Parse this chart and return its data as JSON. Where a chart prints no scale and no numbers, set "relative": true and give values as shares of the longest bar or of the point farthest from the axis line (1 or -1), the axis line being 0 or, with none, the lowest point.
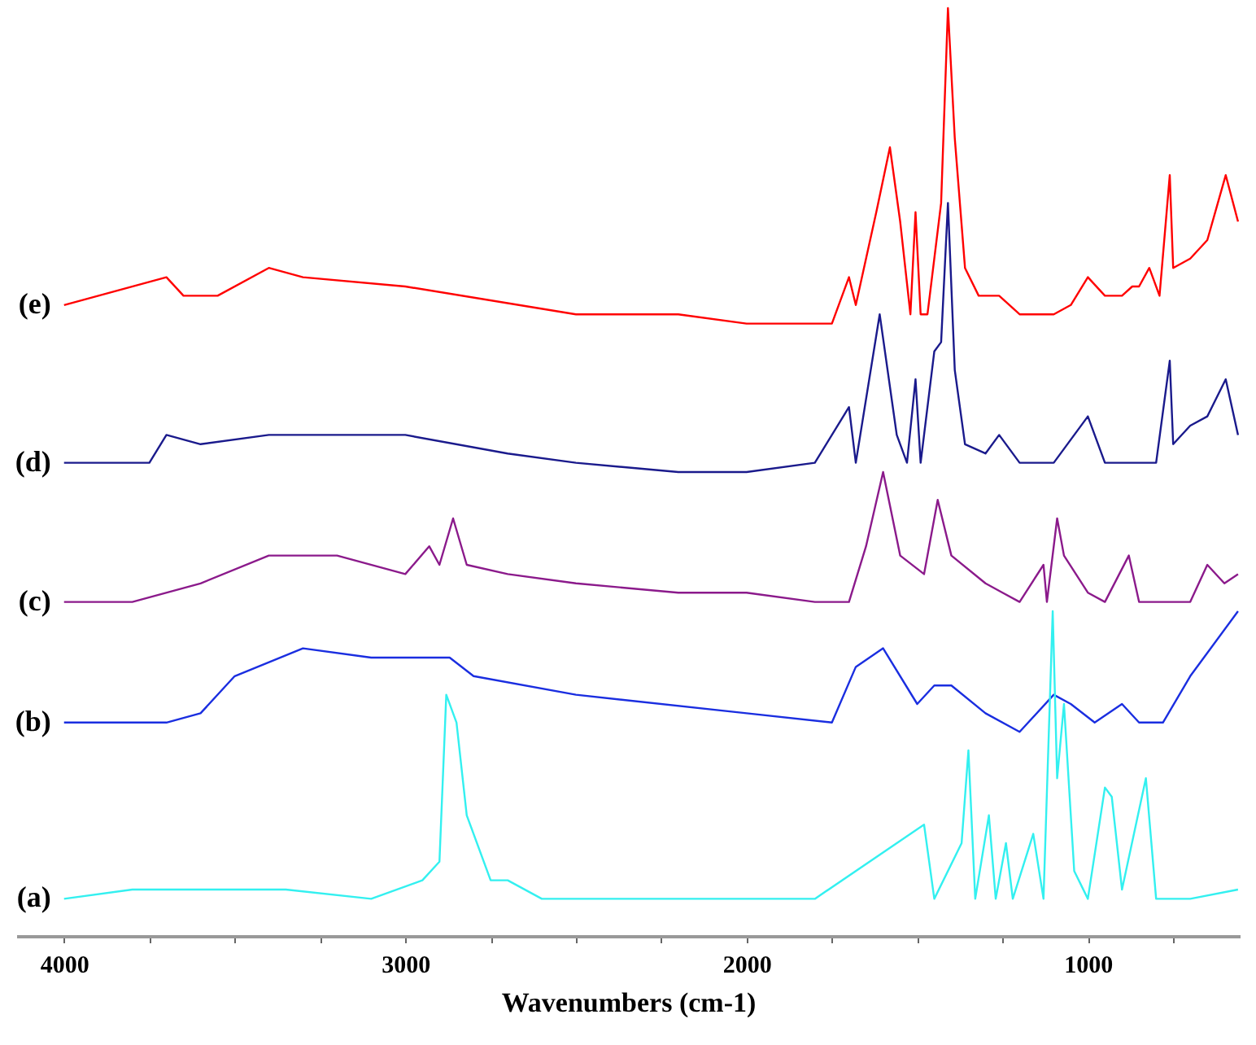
{
  "chart_data": {
    "type": "line",
    "relative": true,
    "xlabel": "Wavenumbers (cm-1)",
    "xlim": [
      4140,
      555
    ],
    "xticks": [
      4000,
      {
        "value": 3750,
        "label": null
      },
      {
        "value": 3500,
        "label": null
      },
      {
        "value": 3250,
        "label": null
      },
      3000,
      {
        "value": 2750,
        "label": null
      },
      {
        "value": 2500,
        "label": null
      },
      {
        "value": 2250,
        "label": null
      },
      2000,
      {
        "value": 1750,
        "label": null
      },
      {
        "value": 1500,
        "label": null
      },
      {
        "value": 1250,
        "label": null
      },
      1000,
      {
        "value": 750,
        "label": null
      }
    ],
    "grid": false,
    "line_style": "solid",
    "marker": "none",
    "series": [
      {
        "name": "(e)",
        "color": "#ff0000",
        "x": [
          4000,
          3700,
          3650,
          3550,
          3400,
          3300,
          3000,
          2500,
          2200,
          2000,
          1750,
          1700,
          1680,
          1620,
          1580,
          1550,
          1520,
          1505,
          1490,
          1470,
          1430,
          1410,
          1390,
          1360,
          1320,
          1260,
          1200,
          1150,
          1100,
          1050,
          1000,
          950,
          900,
          870,
          850,
          820,
          790,
          760,
          750,
          700,
          650,
          596,
          560
        ],
        "values": [
          0.68,
          0.71,
          0.69,
          0.69,
          0.72,
          0.71,
          0.7,
          0.67,
          0.67,
          0.66,
          0.66,
          0.71,
          0.68,
          0.78,
          0.85,
          0.77,
          0.67,
          0.78,
          0.67,
          0.67,
          0.79,
          1.0,
          0.86,
          0.72,
          0.69,
          0.69,
          0.67,
          0.67,
          0.67,
          0.68,
          0.71,
          0.69,
          0.69,
          0.7,
          0.7,
          0.72,
          0.69,
          0.82,
          0.72,
          0.73,
          0.75,
          0.82,
          0.77
        ]
      },
      {
        "name": "(d)",
        "color": "#1a1a8c",
        "x": [
          4000,
          3750,
          3700,
          3600,
          3400,
          3000,
          2700,
          2500,
          2200,
          2000,
          1800,
          1700,
          1680,
          1610,
          1560,
          1530,
          1505,
          1490,
          1450,
          1430,
          1410,
          1390,
          1360,
          1300,
          1260,
          1200,
          1100,
          1000,
          950,
          850,
          800,
          760,
          750,
          700,
          650,
          596,
          560
        ],
        "values": [
          0.51,
          0.51,
          0.54,
          0.53,
          0.54,
          0.54,
          0.52,
          0.51,
          0.5,
          0.5,
          0.51,
          0.57,
          0.51,
          0.67,
          0.54,
          0.51,
          0.6,
          0.51,
          0.63,
          0.64,
          0.79,
          0.61,
          0.53,
          0.52,
          0.54,
          0.51,
          0.51,
          0.56,
          0.51,
          0.51,
          0.51,
          0.62,
          0.53,
          0.55,
          0.56,
          0.6,
          0.54
        ]
      },
      {
        "name": "(c)",
        "color": "#8b1a8b",
        "x": [
          4000,
          3800,
          3600,
          3400,
          3200,
          3000,
          2930,
          2900,
          2860,
          2820,
          2700,
          2500,
          2200,
          2000,
          1800,
          1700,
          1650,
          1600,
          1550,
          1480,
          1440,
          1400,
          1300,
          1250,
          1200,
          1130,
          1120,
          1090,
          1070,
          1000,
          950,
          880,
          850,
          700,
          650,
          600,
          560
        ],
        "values": [
          0.36,
          0.36,
          0.38,
          0.41,
          0.41,
          0.39,
          0.42,
          0.4,
          0.45,
          0.4,
          0.39,
          0.38,
          0.37,
          0.37,
          0.36,
          0.36,
          0.42,
          0.5,
          0.41,
          0.39,
          0.47,
          0.41,
          0.38,
          0.37,
          0.36,
          0.4,
          0.36,
          0.45,
          0.41,
          0.37,
          0.36,
          0.41,
          0.36,
          0.36,
          0.4,
          0.38,
          0.39
        ]
      },
      {
        "name": "(b)",
        "color": "#1a2ee0",
        "x": [
          4000,
          3700,
          3600,
          3500,
          3300,
          3100,
          2950,
          2900,
          2870,
          2800,
          2500,
          2000,
          1750,
          1680,
          1600,
          1500,
          1450,
          1400,
          1300,
          1200,
          1100,
          1050,
          980,
          900,
          850,
          780,
          700,
          560
        ],
        "values": [
          0.23,
          0.23,
          0.24,
          0.28,
          0.31,
          0.3,
          0.3,
          0.3,
          0.3,
          0.28,
          0.26,
          0.24,
          0.23,
          0.29,
          0.31,
          0.25,
          0.27,
          0.27,
          0.24,
          0.22,
          0.26,
          0.25,
          0.23,
          0.25,
          0.23,
          0.23,
          0.28,
          0.35
        ]
      },
      {
        "name": "(a)",
        "color": "#33f0f0",
        "x": [
          4000,
          3800,
          3500,
          3350,
          3100,
          2950,
          2900,
          2880,
          2850,
          2820,
          2750,
          2700,
          2600,
          2000,
          1800,
          1480,
          1450,
          1370,
          1350,
          1330,
          1290,
          1270,
          1240,
          1220,
          1160,
          1130,
          1103,
          1090,
          1070,
          1040,
          1000,
          950,
          930,
          900,
          830,
          800,
          700,
          560
        ],
        "values": [
          0.04,
          0.05,
          0.05,
          0.05,
          0.04,
          0.06,
          0.08,
          0.26,
          0.23,
          0.13,
          0.06,
          0.06,
          0.04,
          0.04,
          0.04,
          0.12,
          0.04,
          0.1,
          0.2,
          0.04,
          0.13,
          0.04,
          0.1,
          0.04,
          0.11,
          0.04,
          0.35,
          0.17,
          0.25,
          0.07,
          0.04,
          0.16,
          0.15,
          0.05,
          0.17,
          0.04,
          0.04,
          0.05
        ]
      }
    ]
  }
}
